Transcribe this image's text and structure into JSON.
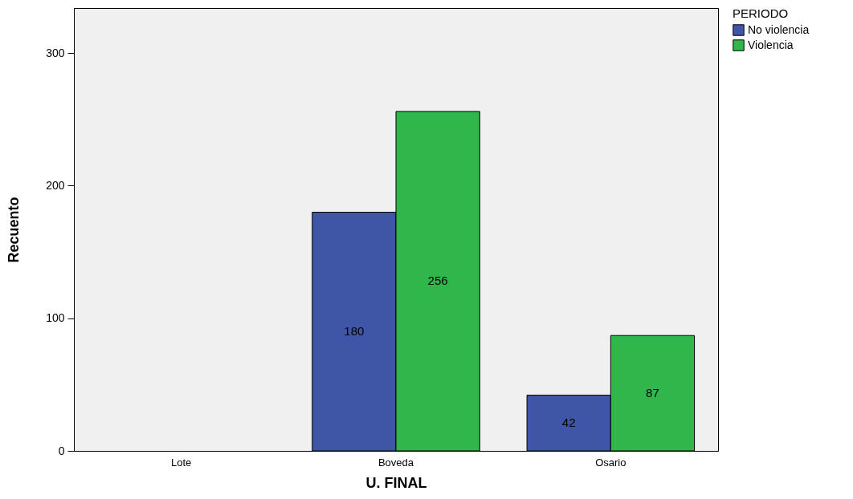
{
  "chart_data": {
    "type": "bar",
    "xlabel": "U. FINAL",
    "ylabel": "Recuento",
    "legend_title": "PERIODO",
    "categories": [
      "Lote",
      "Boveda",
      "Osario"
    ],
    "series": [
      {
        "name": "No violencia",
        "color": "#3f55a6",
        "values": [
          null,
          180,
          42
        ]
      },
      {
        "name": "Violencia",
        "color": "#30b64a",
        "values": [
          null,
          256,
          87
        ]
      }
    ],
    "ylim": [
      0,
      334
    ],
    "yticks": [
      0,
      100,
      200,
      300
    ],
    "grid": false,
    "legend": "top right",
    "data_labels": true
  }
}
